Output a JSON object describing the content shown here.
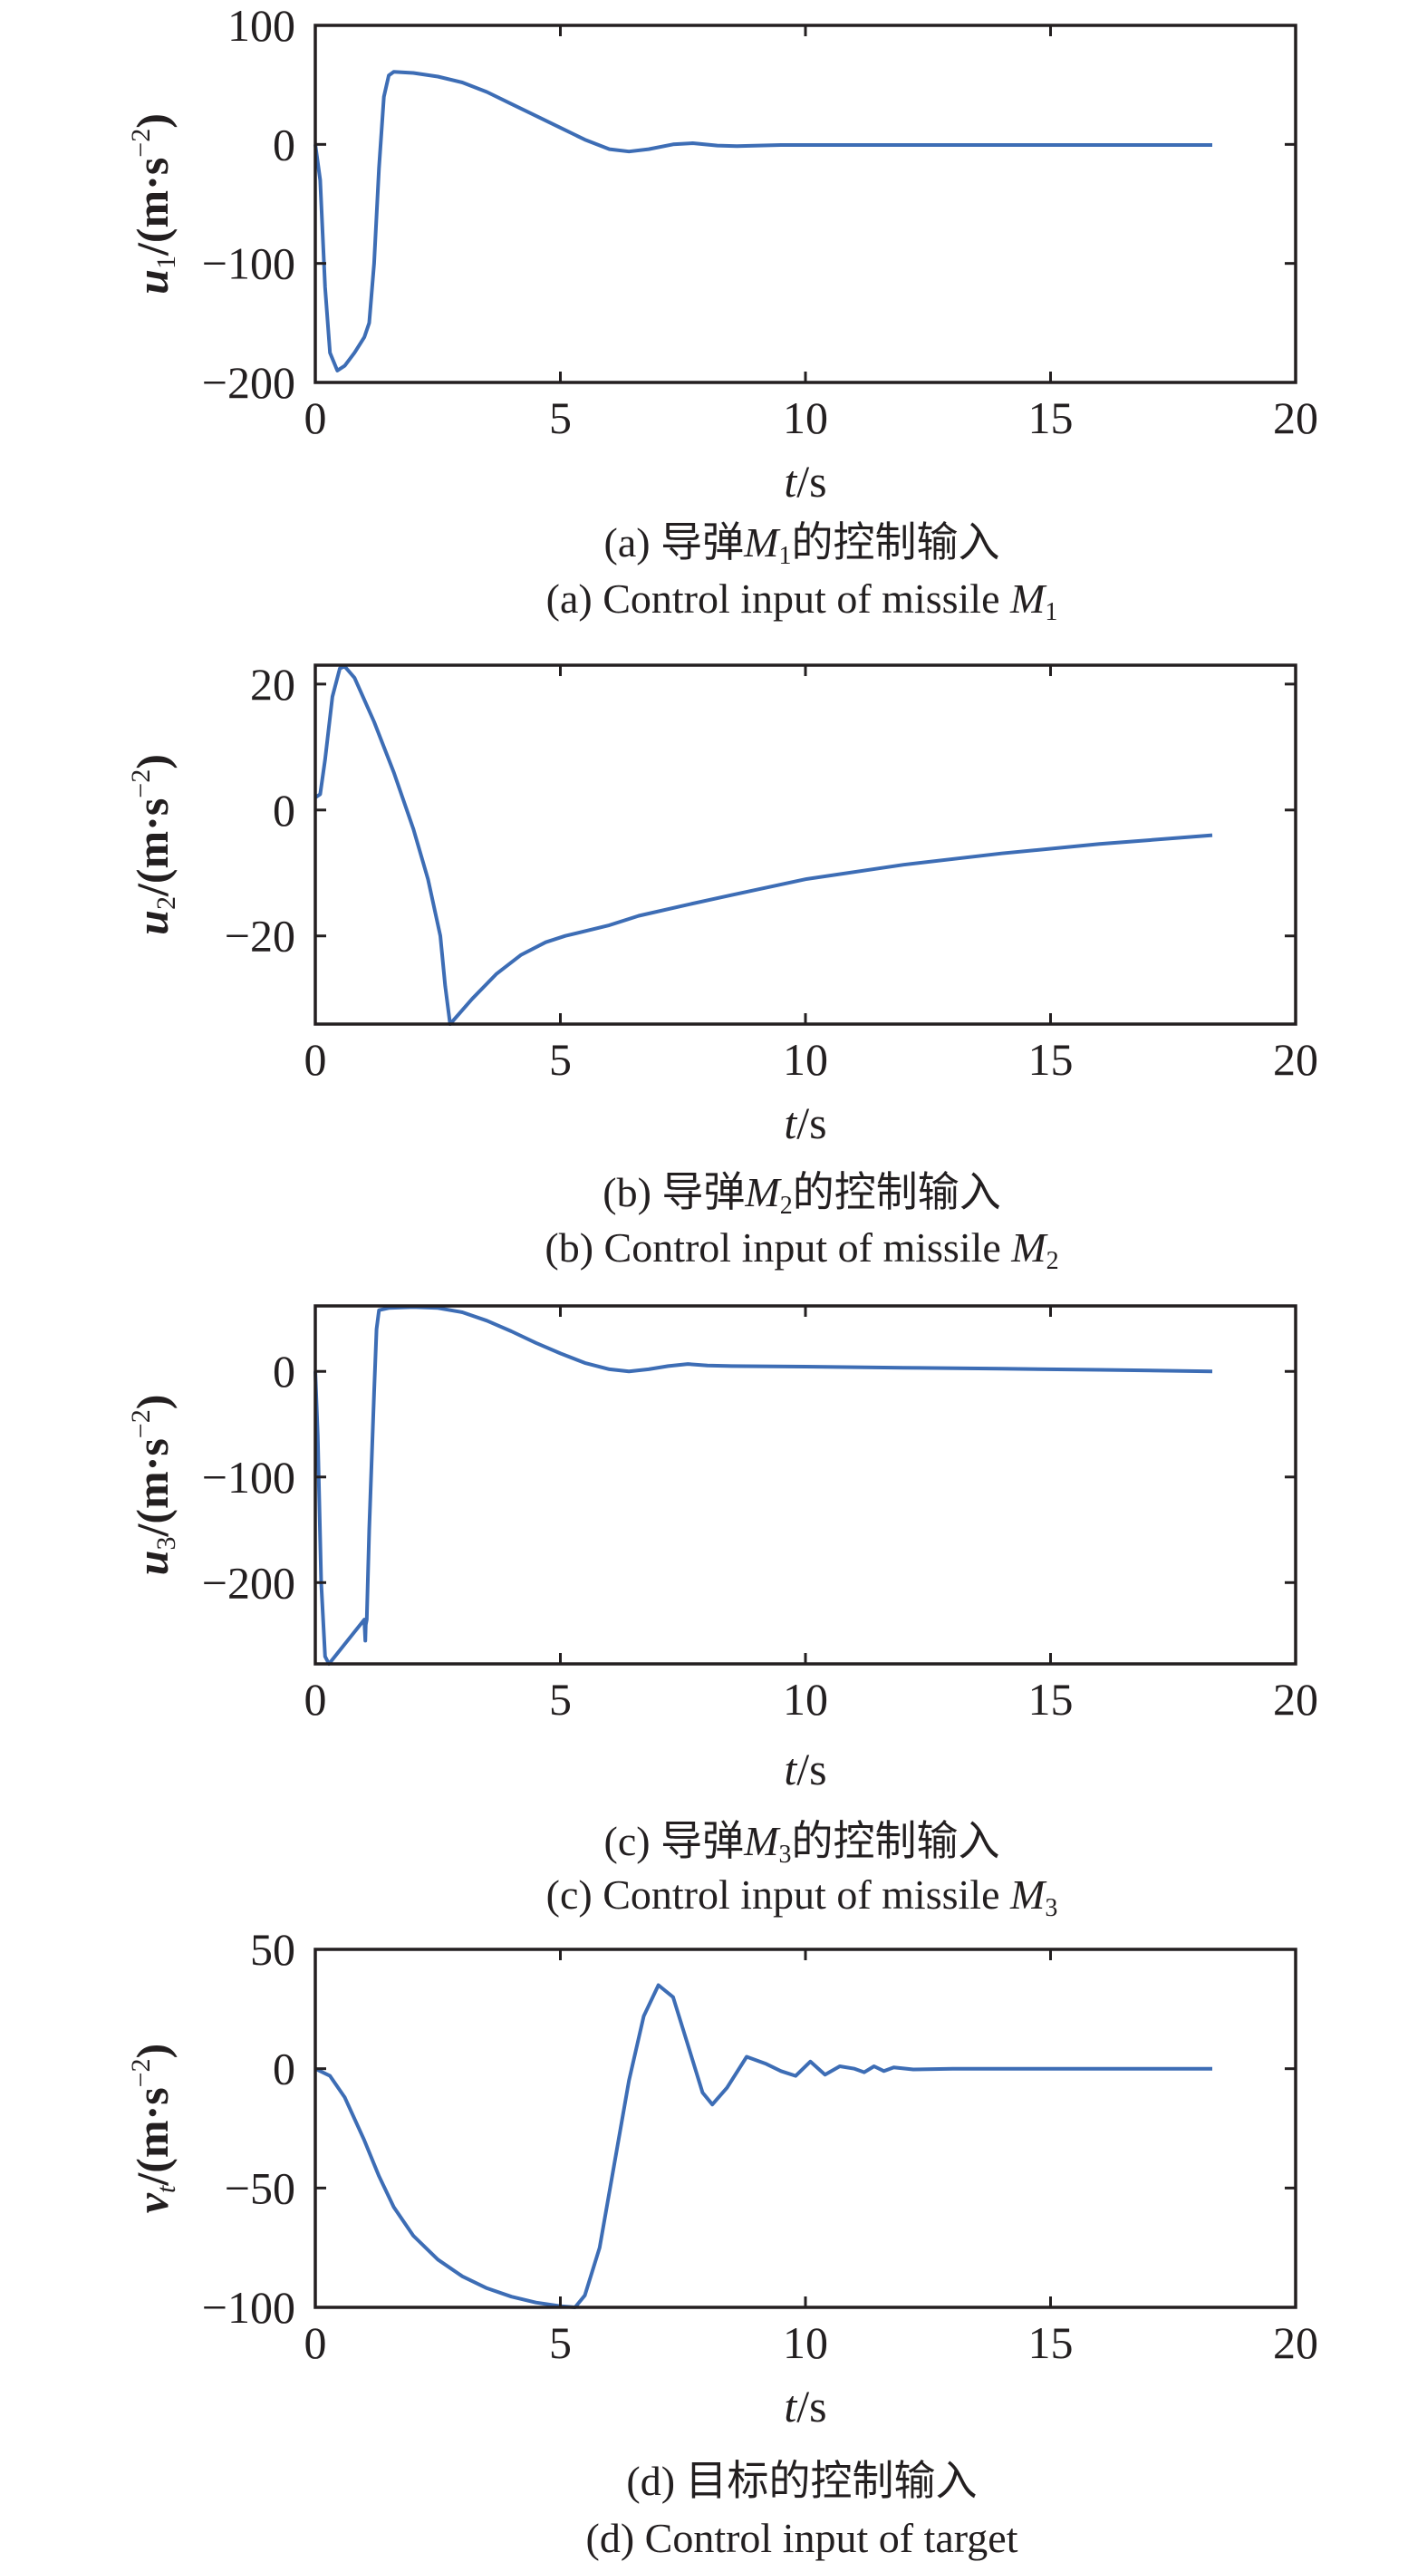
{
  "colors": {
    "line": "#3d6db5",
    "axis": "#231f20"
  },
  "chart_data": [
    {
      "type": "line",
      "id": "a",
      "ylabel": {
        "var": "u",
        "sub": "1",
        "unit": "/(m·s",
        "sup": "−2",
        "close": ")"
      },
      "xlabel": {
        "var": "t",
        "unit": "/s"
      },
      "xlim": [
        0,
        20
      ],
      "ylim": [
        -200,
        100
      ],
      "xticks": [
        0,
        5,
        10,
        15,
        20
      ],
      "xtick_labels": [
        "0",
        "5",
        "10",
        "15",
        "20"
      ],
      "yticks": [
        100,
        0,
        -100,
        -200
      ],
      "ytick_labels": [
        "100",
        "0",
        "−100",
        "−200"
      ],
      "caption_cn": {
        "prefix": "(a) 导弹",
        "var": "M",
        "sub": "1",
        "suffix": "的控制输入"
      },
      "caption_en": {
        "prefix": "(a) Control input of missile ",
        "var": "M",
        "sub": "1"
      },
      "x": [
        0,
        0.1,
        0.2,
        0.3,
        0.45,
        0.6,
        0.8,
        1.0,
        1.1,
        1.2,
        1.3,
        1.4,
        1.5,
        1.6,
        2,
        2.5,
        3,
        3.5,
        4,
        4.5,
        5,
        5.5,
        6,
        6.4,
        6.8,
        7.3,
        7.7,
        8.2,
        8.6,
        9.5,
        10,
        18.3
      ],
      "y": [
        0,
        -30,
        -120,
        -175,
        -190,
        -186,
        -175,
        -162,
        -150,
        -100,
        -20,
        40,
        58,
        61,
        60,
        57,
        52,
        44,
        34,
        24,
        14,
        4,
        -4,
        -6,
        -4,
        0,
        1,
        -1,
        -1.5,
        -0.5,
        -0.5,
        -0.5
      ]
    },
    {
      "type": "line",
      "id": "b",
      "ylabel": {
        "var": "u",
        "sub": "2",
        "unit": "/(m·s",
        "sup": "−2",
        "close": ")"
      },
      "xlabel": {
        "var": "t",
        "unit": "/s"
      },
      "xlim": [
        0,
        20
      ],
      "ylim": [
        -34,
        23
      ],
      "xticks": [
        0,
        5,
        10,
        15,
        20
      ],
      "xtick_labels": [
        "0",
        "5",
        "10",
        "15",
        "20"
      ],
      "yticks": [
        20,
        0,
        -20
      ],
      "ytick_labels": [
        "20",
        "0",
        "−20"
      ],
      "caption_cn": {
        "prefix": "(b) 导弹",
        "var": "M",
        "sub": "2",
        "suffix": "的控制输入"
      },
      "caption_en": {
        "prefix": "(b) Control input of missile ",
        "var": "M",
        "sub": "2"
      },
      "x": [
        0,
        0.1,
        0.2,
        0.35,
        0.5,
        0.6,
        0.8,
        1.2,
        1.6,
        2.0,
        2.3,
        2.55,
        2.65,
        2.75,
        3.2,
        3.7,
        4.2,
        4.7,
        5.1,
        6,
        6.6,
        7.5,
        8.5,
        10,
        12,
        14,
        16,
        18.3
      ],
      "y": [
        2,
        2.5,
        8,
        18,
        22.5,
        22.8,
        21,
        14,
        6,
        -3,
        -11,
        -20,
        -28,
        -34,
        -30,
        -26,
        -23,
        -21,
        -20,
        -18.3,
        -16.8,
        -15.2,
        -13.5,
        -11,
        -8.7,
        -6.9,
        -5.4,
        -4
      ]
    },
    {
      "type": "line",
      "id": "c",
      "ylabel": {
        "var": "u",
        "sub": "3",
        "unit": "/(m·s",
        "sup": "−2",
        "close": ")"
      },
      "xlabel": {
        "var": "t",
        "unit": "/s"
      },
      "xlim": [
        0,
        20
      ],
      "ylim": [
        -277,
        62
      ],
      "xticks": [
        0,
        5,
        10,
        15,
        20
      ],
      "xtick_labels": [
        "0",
        "5",
        "10",
        "15",
        "20"
      ],
      "yticks": [
        0,
        -100,
        -200
      ],
      "ytick_labels": [
        "0",
        "−100",
        "−200"
      ],
      "caption_cn": {
        "prefix": "(c) 导弹",
        "var": "M",
        "sub": "3",
        "suffix": "的控制输入"
      },
      "caption_en": {
        "prefix": "(c) Control input of missile ",
        "var": "M",
        "sub": "3"
      },
      "x": [
        0,
        0.05,
        0.12,
        0.2,
        0.28,
        1.0,
        1.02,
        1.03,
        1.05,
        1.1,
        1.2,
        1.25,
        1.3,
        1.5,
        2,
        2.5,
        3,
        3.5,
        4,
        4.5,
        5,
        5.5,
        6,
        6.4,
        6.8,
        7.2,
        7.6,
        8,
        8.5,
        10,
        12,
        14,
        16,
        18.3
      ],
      "y": [
        0,
        -60,
        -200,
        -270,
        -277,
        -235,
        -255,
        -240,
        -235,
        -150,
        -20,
        40,
        58,
        60,
        61,
        60,
        56,
        48,
        38,
        27,
        17,
        8,
        2,
        0,
        2,
        5,
        7,
        5.5,
        5,
        4.5,
        3.5,
        2.5,
        1.5,
        0
      ]
    },
    {
      "type": "line",
      "id": "d",
      "ylabel": {
        "var": "v",
        "sub": "t",
        "unit": "/(m·s",
        "sup": "−2",
        "close": ")"
      },
      "xlabel": {
        "var": "t",
        "unit": "/s"
      },
      "xlim": [
        0,
        20
      ],
      "ylim": [
        -100,
        50
      ],
      "xticks": [
        0,
        5,
        10,
        15,
        20
      ],
      "xtick_labels": [
        "0",
        "5",
        "10",
        "15",
        "20"
      ],
      "yticks": [
        50,
        0,
        -50,
        -100
      ],
      "ytick_labels": [
        "50",
        "0",
        "−50",
        "−100"
      ],
      "caption_cn": {
        "prefix": "(d) 目标的控制输入",
        "var": "",
        "sub": "",
        "suffix": ""
      },
      "caption_en": {
        "prefix": "(d) Control input of target",
        "var": "",
        "sub": ""
      },
      "x": [
        0,
        0.3,
        0.6,
        1,
        1.3,
        1.6,
        2,
        2.5,
        3,
        3.5,
        4,
        4.5,
        5,
        5.3,
        5.5,
        5.8,
        6.1,
        6.4,
        6.7,
        7,
        7.3,
        7.6,
        7.9,
        8.1,
        8.4,
        8.8,
        9.2,
        9.5,
        9.8,
        10.1,
        10.4,
        10.7,
        11,
        11.2,
        11.4,
        11.6,
        11.8,
        12.2,
        13,
        18.3
      ],
      "y": [
        0,
        -3,
        -12,
        -30,
        -45,
        -58,
        -70,
        -80,
        -87,
        -92,
        -95.5,
        -98,
        -99.5,
        -100,
        -95,
        -75,
        -40,
        -5,
        22,
        35,
        30,
        10,
        -10,
        -15,
        -8,
        5,
        2,
        -1,
        -3,
        3,
        -2.5,
        1,
        0,
        -1.5,
        1,
        -1,
        0.5,
        -0.3,
        0,
        0
      ]
    }
  ]
}
